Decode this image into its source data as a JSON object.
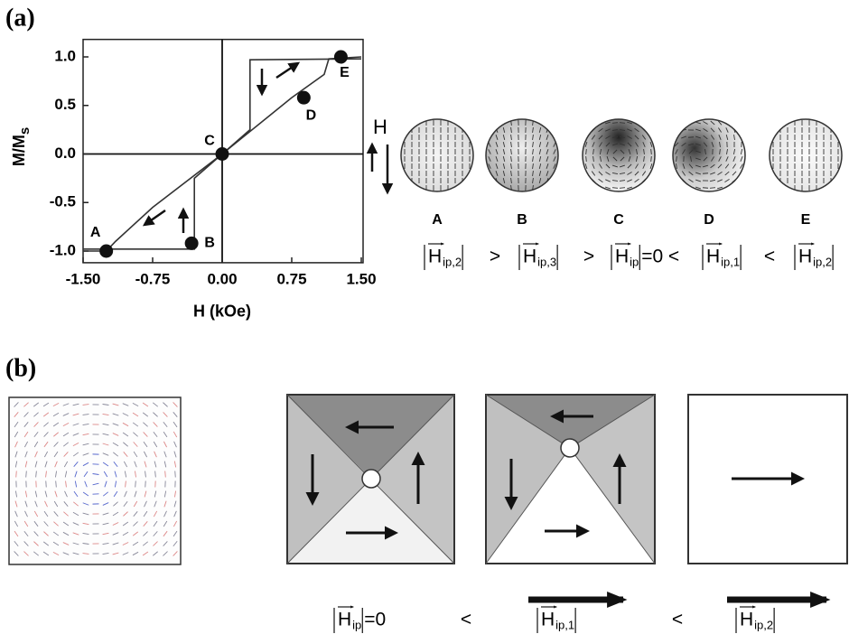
{
  "panels": [
    {
      "label": "(a)"
    },
    {
      "label": "(b)"
    }
  ],
  "chart_data": {
    "type": "line",
    "xlabel": "H (kOe)",
    "ylabel": {
      "text": "M/M",
      "sub": "s"
    },
    "xlim": [
      -1.5,
      1.5
    ],
    "ylim": [
      -1.12,
      1.18
    ],
    "xticks": [
      {
        "value": -1.5,
        "label": "-1.50"
      },
      {
        "value": -0.75,
        "label": "-0.75"
      },
      {
        "value": 0,
        "label": "0.00"
      },
      {
        "value": 0.75,
        "label": "0.75"
      },
      {
        "value": 1.5,
        "label": "1.50"
      }
    ],
    "yticks": [
      {
        "value": 1,
        "label": "1.0"
      },
      {
        "value": 0.5,
        "label": "0.5"
      },
      {
        "value": 0,
        "label": "0.0"
      },
      {
        "value": -0.5,
        "label": "-0.5"
      },
      {
        "value": -1,
        "label": "-1.0"
      }
    ],
    "series": [
      {
        "color": "#333333",
        "x": [
          1.5,
          0.3,
          0.3,
          0.0,
          -0.75,
          -1.15,
          -1.25,
          -1.5
        ],
        "values": [
          0.98,
          0.97,
          0.25,
          0.0,
          -0.55,
          -0.9,
          -1.0,
          -1.0
        ]
      },
      {
        "color": "#333333",
        "x": [
          -1.5,
          -0.3,
          -0.3,
          0.0,
          0.75,
          1.1,
          1.15,
          1.5
        ],
        "values": [
          -0.98,
          -0.98,
          -0.25,
          0.0,
          0.58,
          0.82,
          0.98,
          1.0
        ]
      }
    ],
    "points": {
      "labels": [
        "A",
        "B",
        "C",
        "D",
        "E"
      ],
      "x": [
        -1.25,
        -0.33,
        0.0,
        0.88,
        1.28
      ],
      "values": [
        -1.0,
        -0.92,
        0.0,
        0.58,
        1.0
      ]
    }
  },
  "field_label": "H",
  "states_a": {
    "labels": [
      "A",
      "B",
      "C",
      "D",
      "E"
    ]
  },
  "relation_a": {
    "symbol": "H",
    "terms": [
      {
        "sub": "ip,2"
      },
      {
        "sub": "ip,3"
      },
      {
        "sub": "ip",
        "suffix": "=0"
      },
      {
        "sub": "ip,1"
      },
      {
        "sub": "ip,2"
      }
    ],
    "ops": [
      ">",
      ">",
      "<",
      "<"
    ]
  },
  "relation_b": {
    "symbol": "H",
    "terms": [
      {
        "sub": "ip",
        "suffix": "=0"
      },
      {
        "sub": "ip,1"
      },
      {
        "sub": "ip,2"
      }
    ],
    "ops": [
      "<",
      "<"
    ]
  }
}
